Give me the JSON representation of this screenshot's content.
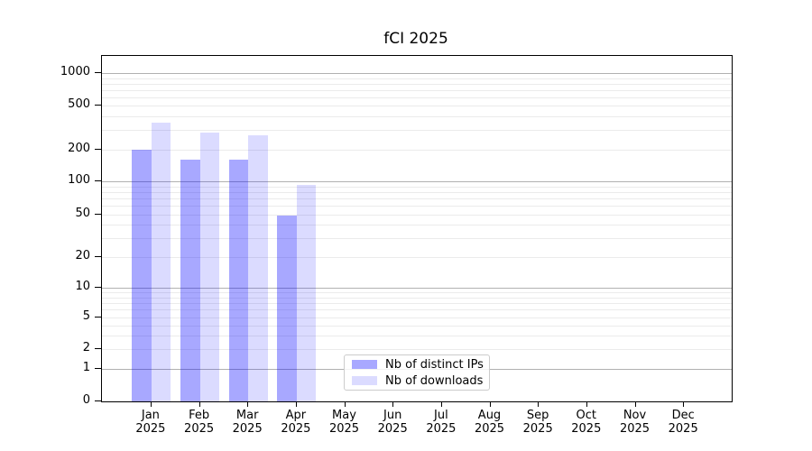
{
  "title": "fCI 2025",
  "chart_data": {
    "type": "bar",
    "title": "fCI 2025",
    "x": {
      "categories": [
        "Jan",
        "Feb",
        "Mar",
        "Apr",
        "May",
        "Jun",
        "Jul",
        "Aug",
        "Sep",
        "Oct",
        "Nov",
        "Dec"
      ],
      "year_suffix": "2025"
    },
    "y": {
      "scale": "symlog",
      "ticks": [
        0,
        1,
        2,
        5,
        10,
        20,
        50,
        100,
        200,
        500,
        1000
      ],
      "ylim": [
        0,
        1480
      ],
      "grid": "on"
    },
    "series": [
      {
        "name": "Nb of distinct IPs",
        "color": "rgba(0,0,255,0.34)",
        "color_hex_on_white": "#a8a8ff",
        "values": [
          200,
          160,
          160,
          49,
          null,
          null,
          null,
          null,
          null,
          null,
          null,
          null
        ]
      },
      {
        "name": "Nb of downloads",
        "color": "rgba(0,0,255,0.14)",
        "color_hex_on_white": "#dbdbff",
        "values": [
          350,
          285,
          270,
          93,
          null,
          null,
          null,
          null,
          null,
          null,
          null,
          null
        ]
      }
    ],
    "grid_colors": {
      "major": "#b1b1b1",
      "minor": "#ebebeb"
    },
    "legend": {
      "position": "inside-bottom-center",
      "entries": [
        "Nb of distinct IPs",
        "Nb of downloads"
      ]
    }
  }
}
